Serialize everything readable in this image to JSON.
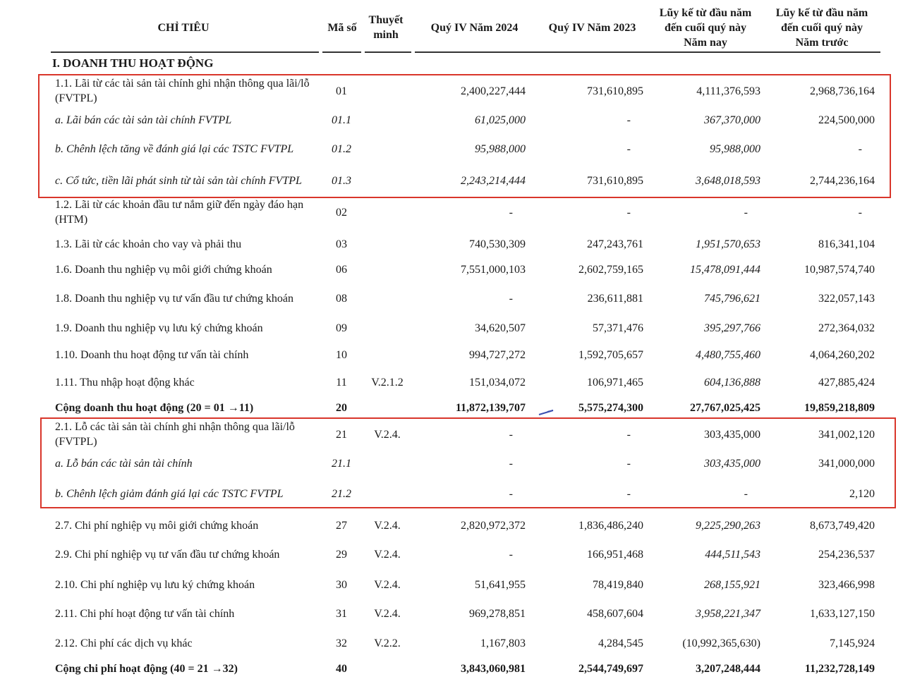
{
  "header": {
    "col_label": "CHỈ TIÊU",
    "col_code": "Mã số",
    "col_note": [
      "Thuyết",
      "minh"
    ],
    "col_q4_2024": "Quý IV Năm 2024",
    "col_q4_2023": "Quý IV Năm 2023",
    "col_ytd_this": [
      "Lũy kế từ đầu năm",
      "đến cuối quý này",
      "Năm nay"
    ],
    "col_ytd_prev": [
      "Lũy kế từ đầu năm",
      "đến cuối quý này",
      "Năm trước"
    ]
  },
  "section": "I. DOANH THU HOẠT ĐỘNG",
  "table": {
    "rows": [
      [
        "1.1. Lãi từ các tài sản tài chính ghi nhận thông qua lãi/lỗ (FVTPL)",
        "01",
        null,
        "2,400,227,444",
        "731,610,895",
        "4,111,376,593",
        "2,968,736,164"
      ],
      [
        "a. Lãi bán các tài sản tài chính FVTPL",
        "01.1",
        null,
        "61,025,000",
        "-",
        "367,370,000",
        "224,500,000"
      ],
      [
        "b. Chênh lệch tăng về đánh giá lại các TSTC FVTPL",
        "01.2",
        null,
        "95,988,000",
        "-",
        "95,988,000",
        "-"
      ],
      [
        "c. Cổ tức, tiền lãi phát sinh từ tài sản tài chính FVTPL",
        "01.3",
        null,
        "2,243,214,444",
        "731,610,895",
        "3,648,018,593",
        "2,744,236,164"
      ],
      [
        "1.2. Lãi từ các khoản đầu tư nắm giữ đến ngày đáo hạn (HTM)",
        "02",
        null,
        "-",
        "-",
        "-",
        "-"
      ],
      [
        "1.3. Lãi từ các khoản cho vay và phải thu",
        "03",
        null,
        "740,530,309",
        "247,243,761",
        "1,951,570,653",
        "816,341,104"
      ],
      [
        "1.6. Doanh thu nghiệp vụ môi giới chứng khoán",
        "06",
        null,
        "7,551,000,103",
        "2,602,759,165",
        "15,478,091,444",
        "10,987,574,740"
      ],
      [
        "1.8. Doanh thu nghiệp vụ tư vấn đầu tư chứng khoán",
        "08",
        null,
        "-",
        "236,611,881",
        "745,796,621",
        "322,057,143"
      ],
      [
        "1.9. Doanh thu nghiệp vụ lưu ký chứng khoán",
        "09",
        null,
        "34,620,507",
        "57,371,476",
        "395,297,766",
        "272,364,032"
      ],
      [
        "1.10. Doanh thu hoạt động tư vấn tài chính",
        "10",
        null,
        "994,727,272",
        "1,592,705,657",
        "4,480,755,460",
        "4,064,260,202"
      ],
      [
        "1.11. Thu nhập hoạt động khác",
        "11",
        "V.2.1.2",
        "151,034,072",
        "106,971,465",
        "604,136,888",
        "427,885,424"
      ],
      [
        "Cộng doanh thu hoạt động (20 = 01 →11)",
        "20",
        null,
        "11,872,139,707",
        "5,575,274,300",
        "27,767,025,425",
        "19,859,218,809"
      ],
      [
        "2.1. Lỗ các tài sản tài chính ghi nhận thông qua lãi/lỗ (FVTPL)",
        "21",
        "V.2.4.",
        "-",
        "-",
        "303,435,000",
        "341,002,120"
      ],
      [
        "a. Lỗ bán các tài sản tài chính",
        "21.1",
        null,
        "-",
        "-",
        "303,435,000",
        "341,000,000"
      ],
      [
        "b. Chênh lệch giảm đánh giá lại các TSTC FVTPL",
        "21.2",
        null,
        "-",
        "-",
        "-",
        "2,120"
      ],
      [
        "2.7. Chi phí nghiệp vụ môi giới chứng khoán",
        "27",
        "V.2.4.",
        "2,820,972,372",
        "1,836,486,240",
        "9,225,290,263",
        "8,673,749,420"
      ],
      [
        "2.9. Chi phí nghiệp vụ tư vấn đầu tư chứng khoán",
        "29",
        "V.2.4.",
        "-",
        "166,951,468",
        "444,511,543",
        "254,236,537"
      ],
      [
        "2.10. Chi phí nghiệp vụ lưu ký chứng khoán",
        "30",
        "V.2.4.",
        "51,641,955",
        "78,419,840",
        "268,155,921",
        "323,466,998"
      ],
      [
        "2.11. Chi phí hoạt động tư vấn tài chính",
        "31",
        "V.2.4.",
        "969,278,851",
        "458,607,604",
        "3,958,221,347",
        "1,633,127,150"
      ],
      [
        "2.12. Chi phí các dịch vụ khác",
        "32",
        "V.2.2.",
        "1,167,803",
        "4,284,545",
        "(10,992,365,630)",
        "7,145,924"
      ],
      [
        "Cộng chi phí hoạt động (40 = 21 →32)",
        "40",
        null,
        "3,843,060,981",
        "2,544,749,697",
        "3,207,248,444",
        "11,232,728,149"
      ]
    ]
  }
}
